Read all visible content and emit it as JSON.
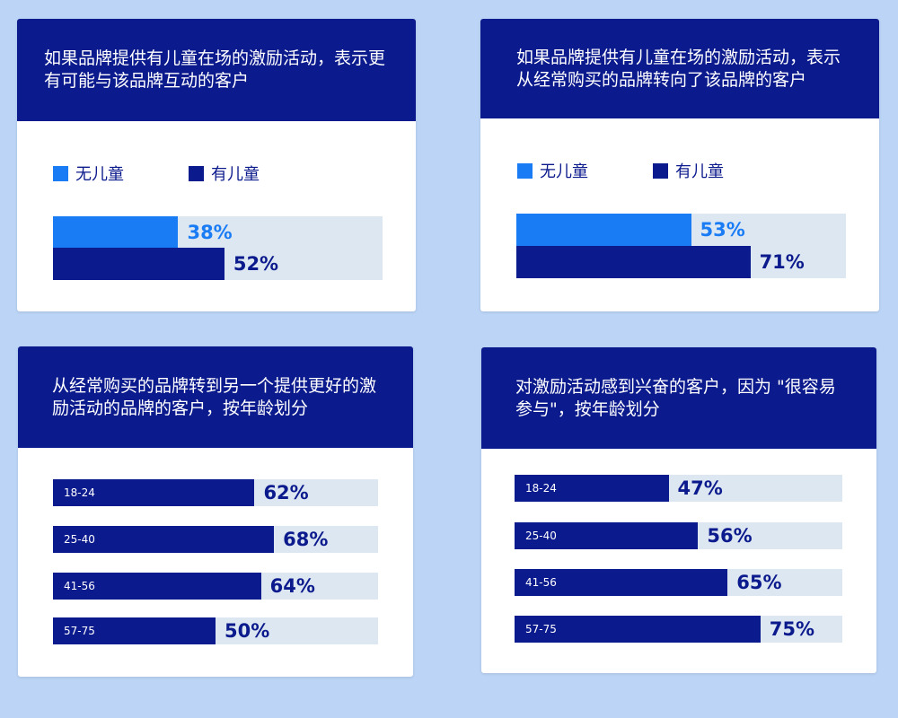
{
  "colors": {
    "navy": "#0b1a8c",
    "blue": "#1a7cf5",
    "track": "#dde7f1",
    "background": "#bcd5f7"
  },
  "chart_data": [
    {
      "type": "bar",
      "title": "如果品牌提供有儿童在场的激励活动，表示更有可能与该品牌互动的客户",
      "legend": [
        "无儿童",
        "有儿童"
      ],
      "series": [
        {
          "name": "无儿童",
          "values": [
            38
          ],
          "labels": [
            "38%"
          ]
        },
        {
          "name": "有儿童",
          "values": [
            52
          ],
          "labels": [
            "52%"
          ]
        }
      ],
      "ylim": [
        0,
        100
      ]
    },
    {
      "type": "bar",
      "title": "如果品牌提供有儿童在场的激励活动，表示从经常购买的品牌转向了该品牌的客户",
      "legend": [
        "无儿童",
        "有儿童"
      ],
      "series": [
        {
          "name": "无儿童",
          "values": [
            53
          ],
          "labels": [
            "53%"
          ]
        },
        {
          "name": "有儿童",
          "values": [
            71
          ],
          "labels": [
            "71%"
          ]
        }
      ],
      "ylim": [
        0,
        100
      ]
    },
    {
      "type": "bar",
      "title": "从经常购买的品牌转到另一个提供更好的激励活动的品牌的客户，按年龄划分",
      "categories": [
        "18-24",
        "25-40",
        "41-56",
        "57-75"
      ],
      "values": [
        62,
        68,
        64,
        50
      ],
      "labels": [
        "62%",
        "68%",
        "64%",
        "50%"
      ],
      "ylim": [
        0,
        100
      ]
    },
    {
      "type": "bar",
      "title": "对激励活动感到兴奋的客户，因为 \"很容易参与\"，按年龄划分",
      "categories": [
        "18-24",
        "25-40",
        "41-56",
        "57-75"
      ],
      "values": [
        47,
        56,
        65,
        75
      ],
      "labels": [
        "47%",
        "56%",
        "65%",
        "75%"
      ],
      "ylim": [
        0,
        100
      ]
    }
  ]
}
